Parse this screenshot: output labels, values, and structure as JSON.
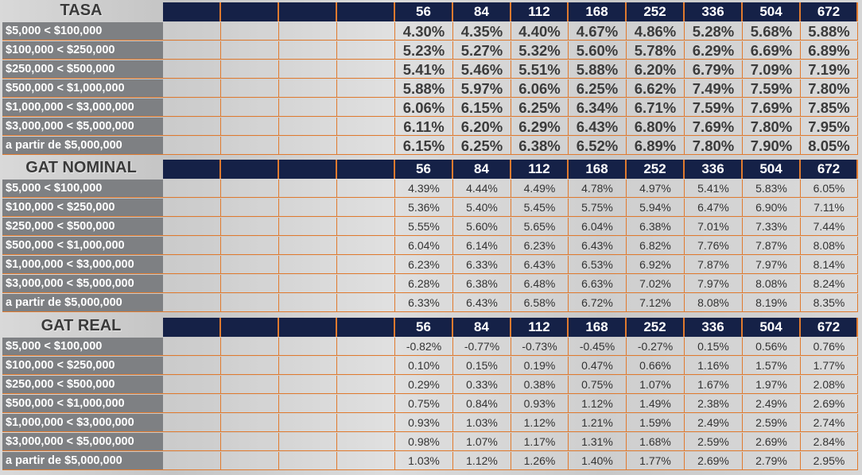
{
  "columns": [
    "56",
    "84",
    "112",
    "168",
    "252",
    "336",
    "504",
    "672"
  ],
  "sections": [
    {
      "title": "TASA",
      "rows": [
        {
          "label": "$5,000 < $100,000",
          "values": [
            "4.30%",
            "4.35%",
            "4.40%",
            "4.67%",
            "4.86%",
            "5.28%",
            "5.68%",
            "5.88%"
          ]
        },
        {
          "label": "$100,000 < $250,000",
          "values": [
            "5.23%",
            "5.27%",
            "5.32%",
            "5.60%",
            "5.78%",
            "6.29%",
            "6.69%",
            "6.89%"
          ]
        },
        {
          "label": "$250,000 < $500,000",
          "values": [
            "5.41%",
            "5.46%",
            "5.51%",
            "5.88%",
            "6.20%",
            "6.79%",
            "7.09%",
            "7.19%"
          ]
        },
        {
          "label": "$500,000 < $1,000,000",
          "values": [
            "5.88%",
            "5.97%",
            "6.06%",
            "6.25%",
            "6.62%",
            "7.49%",
            "7.59%",
            "7.80%"
          ]
        },
        {
          "label": "$1,000,000 < $3,000,000",
          "values": [
            "6.06%",
            "6.15%",
            "6.25%",
            "6.34%",
            "6.71%",
            "7.59%",
            "7.69%",
            "7.85%"
          ]
        },
        {
          "label": "$3,000,000 < $5,000,000",
          "values": [
            "6.11%",
            "6.20%",
            "6.29%",
            "6.43%",
            "6.80%",
            "7.69%",
            "7.80%",
            "7.95%"
          ]
        },
        {
          "label": "a partir de $5,000,000",
          "values": [
            "6.15%",
            "6.25%",
            "6.38%",
            "6.52%",
            "6.89%",
            "7.80%",
            "7.90%",
            "8.05%"
          ]
        }
      ]
    },
    {
      "title": "GAT NOMINAL",
      "rows": [
        {
          "label": "$5,000 < $100,000",
          "values": [
            "4.39%",
            "4.44%",
            "4.49%",
            "4.78%",
            "4.97%",
            "5.41%",
            "5.83%",
            "6.05%"
          ]
        },
        {
          "label": "$100,000 < $250,000",
          "values": [
            "5.36%",
            "5.40%",
            "5.45%",
            "5.75%",
            "5.94%",
            "6.47%",
            "6.90%",
            "7.11%"
          ]
        },
        {
          "label": "$250,000 < $500,000",
          "values": [
            "5.55%",
            "5.60%",
            "5.65%",
            "6.04%",
            "6.38%",
            "7.01%",
            "7.33%",
            "7.44%"
          ]
        },
        {
          "label": "$500,000 < $1,000,000",
          "values": [
            "6.04%",
            "6.14%",
            "6.23%",
            "6.43%",
            "6.82%",
            "7.76%",
            "7.87%",
            "8.08%"
          ]
        },
        {
          "label": "$1,000,000 < $3,000,000",
          "values": [
            "6.23%",
            "6.33%",
            "6.43%",
            "6.53%",
            "6.92%",
            "7.87%",
            "7.97%",
            "8.14%"
          ]
        },
        {
          "label": "$3,000,000 < $5,000,000",
          "values": [
            "6.28%",
            "6.38%",
            "6.48%",
            "6.63%",
            "7.02%",
            "7.97%",
            "8.08%",
            "8.24%"
          ]
        },
        {
          "label": "a partir de $5,000,000",
          "values": [
            "6.33%",
            "6.43%",
            "6.58%",
            "6.72%",
            "7.12%",
            "8.08%",
            "8.19%",
            "8.35%"
          ]
        }
      ]
    },
    {
      "title": "GAT REAL",
      "rows": [
        {
          "label": "$5,000 < $100,000",
          "values": [
            "-0.82%",
            "-0.77%",
            "-0.73%",
            "-0.45%",
            "-0.27%",
            "0.15%",
            "0.56%",
            "0.76%"
          ]
        },
        {
          "label": "$100,000 < $250,000",
          "values": [
            "0.10%",
            "0.15%",
            "0.19%",
            "0.47%",
            "0.66%",
            "1.16%",
            "1.57%",
            "1.77%"
          ]
        },
        {
          "label": "$250,000 < $500,000",
          "values": [
            "0.29%",
            "0.33%",
            "0.38%",
            "0.75%",
            "1.07%",
            "1.67%",
            "1.97%",
            "2.08%"
          ]
        },
        {
          "label": "$500,000 < $1,000,000",
          "values": [
            "0.75%",
            "0.84%",
            "0.93%",
            "1.12%",
            "1.49%",
            "2.38%",
            "2.49%",
            "2.69%"
          ]
        },
        {
          "label": "$1,000,000 < $3,000,000",
          "values": [
            "0.93%",
            "1.03%",
            "1.12%",
            "1.21%",
            "1.59%",
            "2.49%",
            "2.59%",
            "2.74%"
          ]
        },
        {
          "label": "$3,000,000 < $5,000,000",
          "values": [
            "0.98%",
            "1.07%",
            "1.17%",
            "1.31%",
            "1.68%",
            "2.59%",
            "2.69%",
            "2.84%"
          ]
        },
        {
          "label": "a partir de $5,000,000",
          "values": [
            "1.03%",
            "1.12%",
            "1.26%",
            "1.40%",
            "1.77%",
            "2.69%",
            "2.79%",
            "2.95%"
          ]
        }
      ]
    }
  ],
  "colors": {
    "header_bg": "#152147",
    "border": "#e07a2e",
    "label_bg": "#7e8083"
  }
}
